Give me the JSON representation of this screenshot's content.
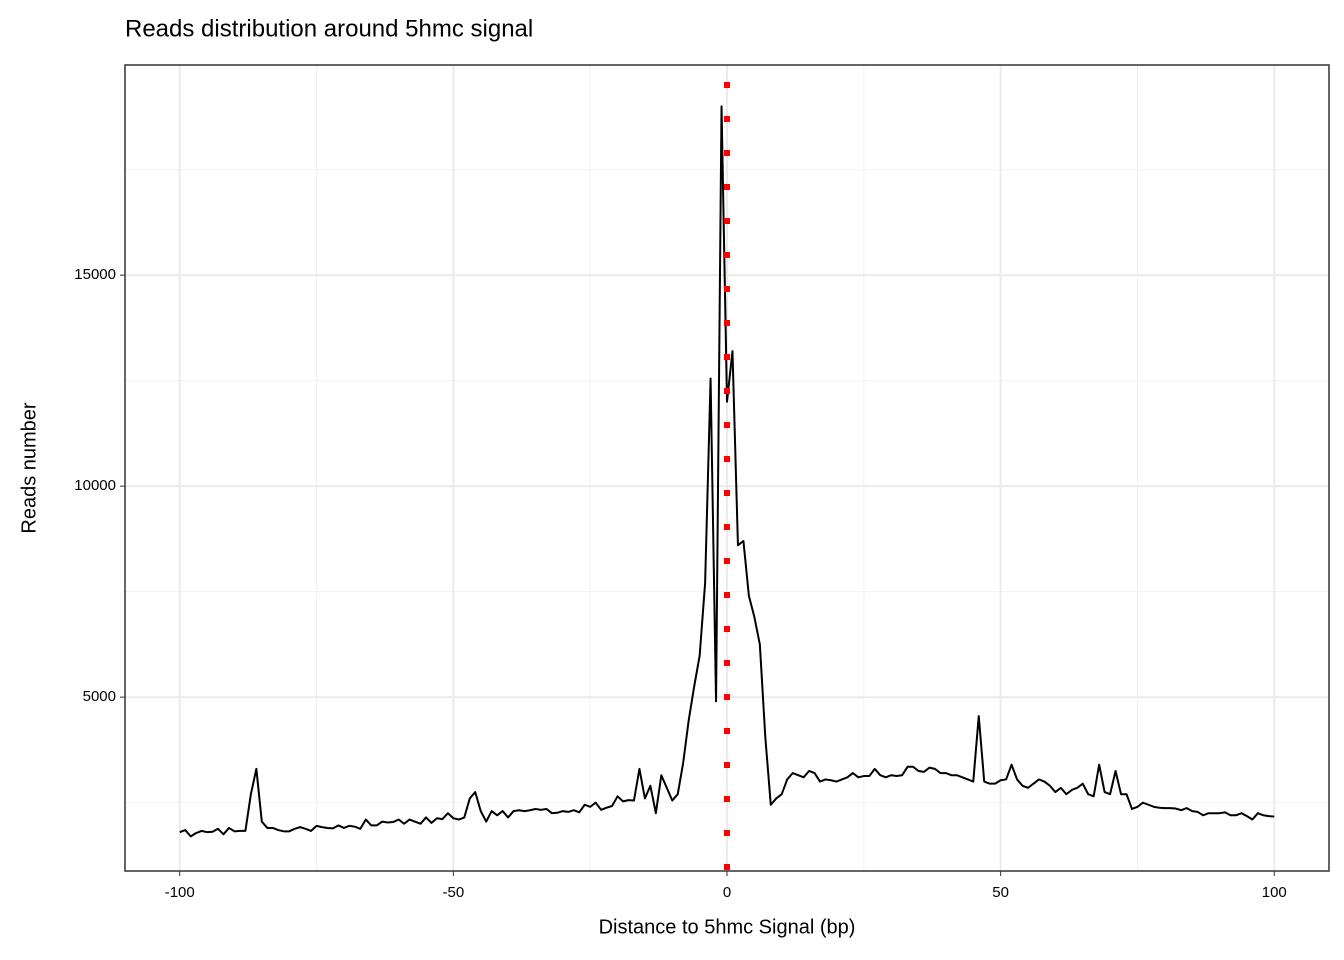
{
  "chart_data": {
    "type": "line",
    "title": "Reads distribution around 5hmc signal",
    "x_label": "Distance to 5hmc Signal (bp)",
    "y_label": "Reads number",
    "x": [
      -100,
      -99,
      -98,
      -97,
      -96,
      -95,
      -94,
      -93,
      -92,
      -91,
      -90,
      -89,
      -88,
      -87,
      -86,
      -85,
      -84,
      -83,
      -82,
      -81,
      -80,
      -79,
      -78,
      -77,
      -76,
      -75,
      -74,
      -73,
      -72,
      -71,
      -70,
      -69,
      -68,
      -67,
      -66,
      -65,
      -64,
      -63,
      -62,
      -61,
      -60,
      -59,
      -58,
      -57,
      -56,
      -55,
      -54,
      -53,
      -52,
      -51,
      -50,
      -49,
      -48,
      -47,
      -46,
      -45,
      -44,
      -43,
      -42,
      -41,
      -40,
      -39,
      -38,
      -37,
      -36,
      -35,
      -34,
      -33,
      -32,
      -31,
      -30,
      -29,
      -28,
      -27,
      -26,
      -25,
      -24,
      -23,
      -22,
      -21,
      -20,
      -19,
      -18,
      -17,
      -16,
      -15,
      -14,
      -13,
      -12,
      -11,
      -10,
      -9,
      -8,
      -7,
      -6,
      -5,
      -4,
      -3,
      -2,
      -1,
      0,
      1,
      2,
      3,
      4,
      5,
      6,
      7,
      8,
      9,
      10,
      11,
      12,
      13,
      14,
      15,
      16,
      17,
      18,
      19,
      20,
      21,
      22,
      23,
      24,
      25,
      26,
      27,
      28,
      29,
      30,
      31,
      32,
      33,
      34,
      35,
      36,
      37,
      38,
      39,
      40,
      41,
      42,
      43,
      44,
      45,
      46,
      47,
      48,
      49,
      50,
      51,
      52,
      53,
      54,
      55,
      56,
      57,
      58,
      59,
      60,
      61,
      62,
      63,
      64,
      65,
      66,
      67,
      68,
      69,
      70,
      71,
      72,
      73,
      74,
      75,
      76,
      77,
      78,
      79,
      80,
      81,
      82,
      83,
      84,
      85,
      86,
      87,
      88,
      89,
      90,
      91,
      92,
      93,
      94,
      95,
      96,
      97,
      98,
      99,
      100
    ],
    "values": [
      1800,
      1850,
      1700,
      1780,
      1830,
      1800,
      1810,
      1880,
      1750,
      1900,
      1820,
      1830,
      1830,
      2700,
      3300,
      2050,
      1900,
      1900,
      1850,
      1820,
      1820,
      1880,
      1920,
      1880,
      1830,
      1950,
      1920,
      1900,
      1890,
      1960,
      1900,
      1950,
      1930,
      1880,
      2100,
      1960,
      1960,
      2050,
      2030,
      2040,
      2100,
      2000,
      2100,
      2050,
      2000,
      2150,
      2020,
      2130,
      2110,
      2250,
      2130,
      2100,
      2150,
      2600,
      2750,
      2300,
      2050,
      2300,
      2200,
      2300,
      2150,
      2300,
      2320,
      2300,
      2320,
      2350,
      2330,
      2350,
      2250,
      2260,
      2300,
      2280,
      2320,
      2270,
      2450,
      2400,
      2500,
      2330,
      2380,
      2420,
      2650,
      2530,
      2560,
      2550,
      3300,
      2600,
      2900,
      2250,
      3150,
      2850,
      2550,
      2700,
      3450,
      4450,
      5250,
      5980,
      7700,
      12550,
      4900,
      19000,
      12000,
      13200,
      8600,
      8700,
      7400,
      6900,
      6250,
      4050,
      2450,
      2600,
      2700,
      3050,
      3200,
      3150,
      3100,
      3250,
      3200,
      3000,
      3050,
      3030,
      3000,
      3050,
      3100,
      3200,
      3100,
      3130,
      3130,
      3300,
      3150,
      3100,
      3150,
      3130,
      3150,
      3350,
      3350,
      3250,
      3230,
      3330,
      3300,
      3200,
      3200,
      3150,
      3150,
      3100,
      3050,
      3000,
      4550,
      3000,
      2950,
      2950,
      3030,
      3050,
      3400,
      3050,
      2900,
      2850,
      2950,
      3050,
      3000,
      2900,
      2750,
      2850,
      2700,
      2800,
      2850,
      2950,
      2700,
      2650,
      3400,
      2750,
      2700,
      3250,
      2700,
      2700,
      2350,
      2400,
      2500,
      2450,
      2400,
      2380,
      2370,
      2370,
      2360,
      2320,
      2370,
      2300,
      2280,
      2200,
      2250,
      2250,
      2250,
      2270,
      2200,
      2200,
      2250,
      2180,
      2100,
      2250,
      2200,
      2180,
      2170
    ],
    "color": "#000000",
    "vline": {
      "x": 0,
      "color": "#ff0000"
    },
    "xlim": [
      -110,
      110
    ],
    "ylim": [
      880,
      19980
    ],
    "xticks": [
      -100,
      -50,
      0,
      50,
      100
    ],
    "yticks": [
      5000,
      10000,
      15000
    ],
    "grid": true
  }
}
